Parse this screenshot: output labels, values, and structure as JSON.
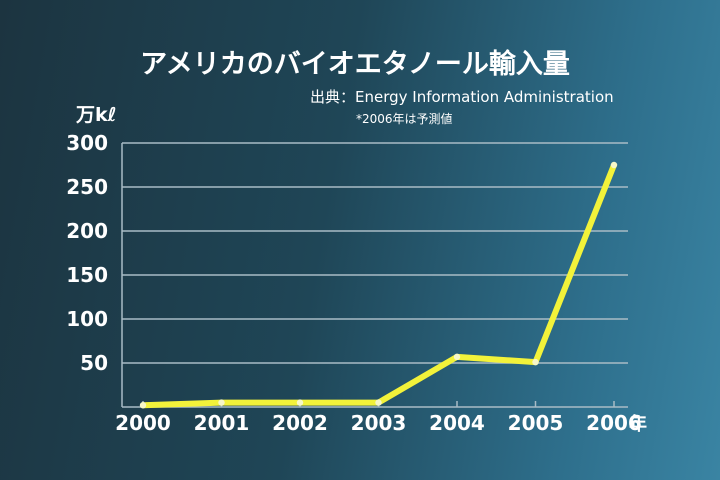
{
  "title": "アメリカのバイオエタノール輸入量",
  "source": "出典：Energy Information Administration",
  "note": "*2006年は予測値",
  "colors": {
    "line": "#f2f23a",
    "point": "#f7f7c8",
    "grid": "#a9bcc6",
    "text": "#ffffff"
  },
  "chart_data": {
    "type": "line",
    "title": "アメリカのバイオエタノール輸入量",
    "ylabel": "万kℓ",
    "xunit": "年",
    "categories": [
      "2000",
      "2001",
      "2002",
      "2003",
      "2004",
      "2005",
      "2006"
    ],
    "values": [
      2,
      5,
      5,
      5,
      57,
      51,
      275
    ],
    "ylim": [
      0,
      300
    ],
    "yticks": [
      50,
      100,
      150,
      200,
      250,
      300
    ],
    "grid": true
  }
}
